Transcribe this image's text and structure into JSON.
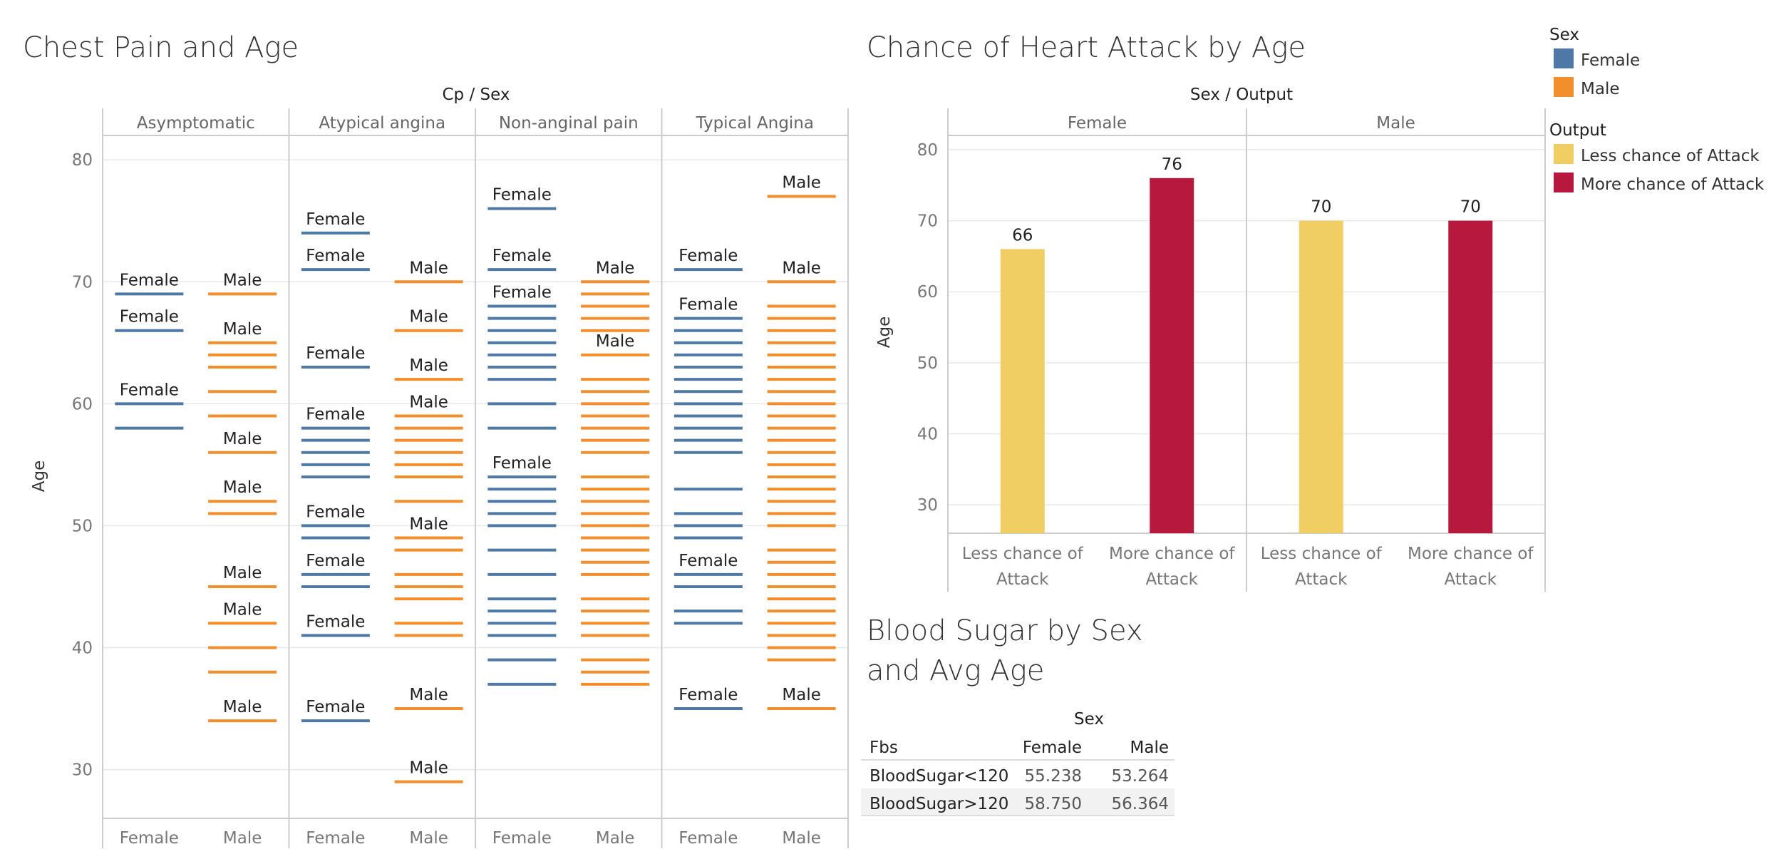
{
  "chart_data": [
    {
      "type": "gantt-strip",
      "title": "Chest Pain and Age",
      "column_header": "Cp / Sex",
      "ylabel": "Age",
      "ylim": [
        26,
        82
      ],
      "yticks": [
        30,
        40,
        50,
        60,
        70,
        80
      ],
      "grid": true,
      "panels": [
        {
          "name": "Asymptomatic",
          "female": [
            69,
            66,
            60,
            58
          ],
          "male": [
            69,
            65,
            64,
            63,
            61,
            59,
            56,
            52,
            51,
            45,
            42,
            40,
            38,
            34
          ],
          "female_labels": [
            69,
            66,
            60
          ],
          "male_labels": [
            69,
            65,
            56,
            52,
            45,
            42,
            34
          ]
        },
        {
          "name": "Atypical angina",
          "female": [
            74,
            71,
            63,
            58,
            57,
            56,
            55,
            54,
            50,
            49,
            46,
            45,
            41,
            34
          ],
          "male": [
            70,
            66,
            62,
            59,
            58,
            57,
            56,
            55,
            54,
            52,
            49,
            48,
            46,
            45,
            44,
            42,
            41,
            35,
            29
          ],
          "female_labels": [
            74,
            71,
            63,
            58,
            50,
            46,
            41,
            34
          ],
          "male_labels": [
            70,
            66,
            62,
            59,
            49,
            35,
            29
          ]
        },
        {
          "name": "Non-anginal pain",
          "female": [
            76,
            71,
            68,
            67,
            66,
            65,
            64,
            63,
            62,
            60,
            58,
            54,
            53,
            52,
            51,
            50,
            48,
            46,
            44,
            43,
            42,
            41,
            39,
            37
          ],
          "male": [
            70,
            69,
            68,
            67,
            66,
            64,
            62,
            61,
            60,
            59,
            58,
            57,
            56,
            54,
            53,
            52,
            51,
            50,
            49,
            48,
            47,
            46,
            44,
            43,
            42,
            41,
            39,
            38,
            37
          ],
          "female_labels": [
            76,
            71,
            68,
            54
          ],
          "male_labels": [
            70,
            64
          ]
        },
        {
          "name": "Typical Angina",
          "female": [
            71,
            67,
            66,
            65,
            64,
            63,
            62,
            61,
            60,
            59,
            58,
            57,
            56,
            53,
            51,
            50,
            49,
            46,
            45,
            43,
            42,
            35
          ],
          "male": [
            77,
            70,
            68,
            67,
            66,
            65,
            64,
            63,
            62,
            61,
            60,
            59,
            58,
            57,
            56,
            55,
            54,
            53,
            52,
            51,
            50,
            48,
            47,
            46,
            45,
            44,
            43,
            42,
            41,
            40,
            39,
            35
          ],
          "female_labels": [
            71,
            67,
            46,
            35
          ],
          "male_labels": [
            77,
            70,
            35
          ]
        }
      ],
      "x_tick_labels": [
        "Female",
        "Male"
      ],
      "series_label_female": "Female",
      "series_label_male": "Male"
    },
    {
      "type": "bar",
      "title": "Chance of Heart Attack by Age",
      "column_header": "Sex / Output",
      "ylabel": "Age",
      "ylim": [
        26,
        82
      ],
      "yticks": [
        30,
        40,
        50,
        60,
        70,
        80
      ],
      "grid": true,
      "panels": [
        {
          "name": "Female",
          "bars": [
            {
              "category": "Less chance of Attack",
              "lines": [
                "Less chance of",
                "Attack"
              ],
              "value": 66,
              "label": "66"
            },
            {
              "category": "More chance of Attack",
              "lines": [
                "More chance of",
                "Attack"
              ],
              "value": 76,
              "label": "76"
            }
          ]
        },
        {
          "name": "Male",
          "bars": [
            {
              "category": "Less chance of Attack",
              "lines": [
                "Less chance of",
                "Attack"
              ],
              "value": 70,
              "label": "70"
            },
            {
              "category": "More chance of Attack",
              "lines": [
                "More chance of",
                "Attack"
              ],
              "value": 70,
              "label": "70"
            }
          ]
        }
      ]
    },
    {
      "type": "table",
      "title_lines": [
        "Blood Sugar by Sex",
        "and Avg Age"
      ],
      "column_header": "Sex",
      "row_header": "Fbs",
      "columns": [
        "Female",
        "Male"
      ],
      "rows": [
        {
          "label": "BloodSugar<120",
          "values": [
            "55.238",
            "53.264"
          ]
        },
        {
          "label": "BloodSugar>120",
          "values": [
            "58.750",
            "56.364"
          ]
        }
      ]
    }
  ],
  "legends": {
    "sex": {
      "title": "Sex",
      "items": [
        {
          "label": "Female",
          "color": "#4e79a7"
        },
        {
          "label": "Male",
          "color": "#f28e2b"
        }
      ]
    },
    "output": {
      "title": "Output",
      "items": [
        {
          "label": "Less chance of Attack",
          "color": "#f1ce63"
        },
        {
          "label": "More chance of Attack",
          "color": "#b6193d"
        }
      ]
    }
  },
  "colors": {
    "female": "#4e79a7",
    "male": "#f28e2b",
    "less": "#f1ce63",
    "more": "#b6193d"
  }
}
